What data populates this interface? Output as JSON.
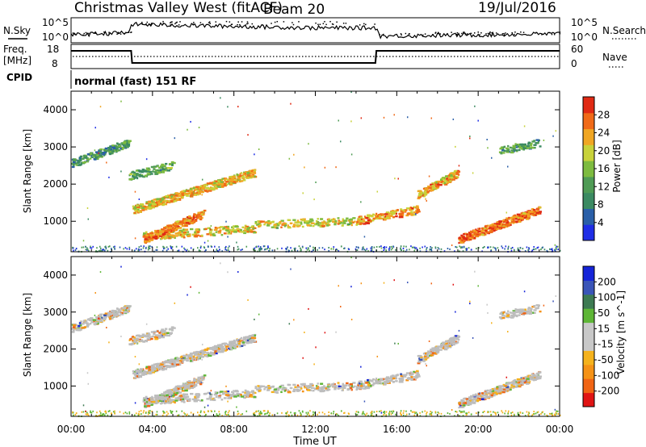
{
  "header": {
    "station": "Christmas Valley West (fitACF)",
    "beam": "Beam 20",
    "date": "19/Jul/2016"
  },
  "noise_panel": {
    "left_label": "N.Sky",
    "right_label": "N.Search",
    "left_ticks": [
      "10^5",
      "10^0"
    ],
    "right_ticks": [
      "10^5",
      "10^0"
    ]
  },
  "freq_panel": {
    "left_label_1": "Freq.",
    "left_label_2": "[MHz]",
    "left_ticks": [
      "18",
      "8"
    ],
    "right_label": "Nave",
    "right_ticks": [
      "60",
      "0"
    ]
  },
  "cpid": {
    "label": "CPID",
    "text": "normal (fast) 151 RF"
  },
  "time_axis": {
    "label": "Time UT",
    "ticks": [
      "00:00",
      "04:00",
      "08:00",
      "12:00",
      "16:00",
      "20:00",
      "00:00"
    ]
  },
  "colors": {
    "power": [
      "#1f2ee6",
      "#2a5fa8",
      "#3b8a62",
      "#4f9b55",
      "#7dbb3f",
      "#c8d23a",
      "#f0a623",
      "#f06a18",
      "#e02a14"
    ],
    "velocity": [
      "#1524d8",
      "#3a55b8",
      "#3d7a52",
      "#5eb636",
      "#c8c8c8",
      "#c8c8c8",
      "#f5b21c",
      "#f59216",
      "#f06414",
      "#e01414"
    ],
    "ground_scatter": "#bdbdbd"
  },
  "chart_data": [
    {
      "type": "heatmap",
      "name_on_chart": "",
      "title": "",
      "xlabel": "Time UT",
      "ylabel": "Slant Range [km]",
      "xlim": [
        0,
        24
      ],
      "ylim": [
        180,
        4500
      ],
      "yticks": [
        1000,
        2000,
        3000,
        4000
      ],
      "colorbar": {
        "label": "Power [dB]",
        "range": [
          0,
          32
        ],
        "ticks": [
          4,
          8,
          12,
          16,
          20,
          24,
          28
        ]
      },
      "features": [
        {
          "t0": 0.0,
          "t1": 2.8,
          "r0": 2550,
          "r1": 3100,
          "level": 11
        },
        {
          "t0": 2.8,
          "t1": 5.0,
          "r0": 2200,
          "r1": 2500,
          "level": 13
        },
        {
          "t0": 3.0,
          "t1": 9.0,
          "r0": 1300,
          "r1": 2300,
          "level": 22
        },
        {
          "t0": 9.0,
          "t1": 14.0,
          "r0": 900,
          "r1": 1000,
          "level": 20
        },
        {
          "t0": 3.5,
          "t1": 9.0,
          "r0": 600,
          "r1": 800,
          "level": 20
        },
        {
          "t0": 3.5,
          "t1": 6.5,
          "r0": 500,
          "r1": 1200,
          "level": 26
        },
        {
          "t0": 14.0,
          "t1": 17.0,
          "r0": 1000,
          "r1": 1300,
          "level": 24
        },
        {
          "t0": 17.0,
          "t1": 19.0,
          "r0": 1700,
          "r1": 2300,
          "level": 23
        },
        {
          "t0": 19.0,
          "t1": 23.0,
          "r0": 500,
          "r1": 1300,
          "level": 27
        },
        {
          "t0": 21.0,
          "t1": 23.0,
          "r0": 2900,
          "r1": 3100,
          "level": 12
        }
      ]
    },
    {
      "type": "heatmap",
      "title": "",
      "xlabel": "Time UT",
      "ylabel": "Slant Range [km]",
      "xlim": [
        0,
        24
      ],
      "ylim": [
        180,
        4500
      ],
      "yticks": [
        1000,
        2000,
        3000,
        4000
      ],
      "colorbar": {
        "label": "Velocity [m s^-1]",
        "range": [
          -250,
          250
        ],
        "ticks": [
          200,
          100,
          50,
          15,
          -15,
          -50,
          -100,
          -200
        ]
      }
    },
    {
      "type": "line",
      "title": "",
      "series": [
        {
          "name": "N.Sky",
          "x": [
            0,
            2.8,
            3.0,
            9.0,
            12.0,
            15.0,
            15.2,
            20.0,
            24.0
          ],
          "y": [
            0.3,
            0.4,
            0.75,
            0.65,
            0.6,
            0.6,
            0.25,
            0.3,
            0.35
          ]
        }
      ]
    },
    {
      "type": "line",
      "title": "",
      "series": [
        {
          "name": "Freq.",
          "x": [
            0,
            2.95,
            3.0,
            14.95,
            15.0,
            24.0
          ],
          "y": [
            16,
            16,
            10,
            10,
            16,
            16
          ]
        }
      ],
      "ylim": [
        8,
        18
      ]
    }
  ]
}
